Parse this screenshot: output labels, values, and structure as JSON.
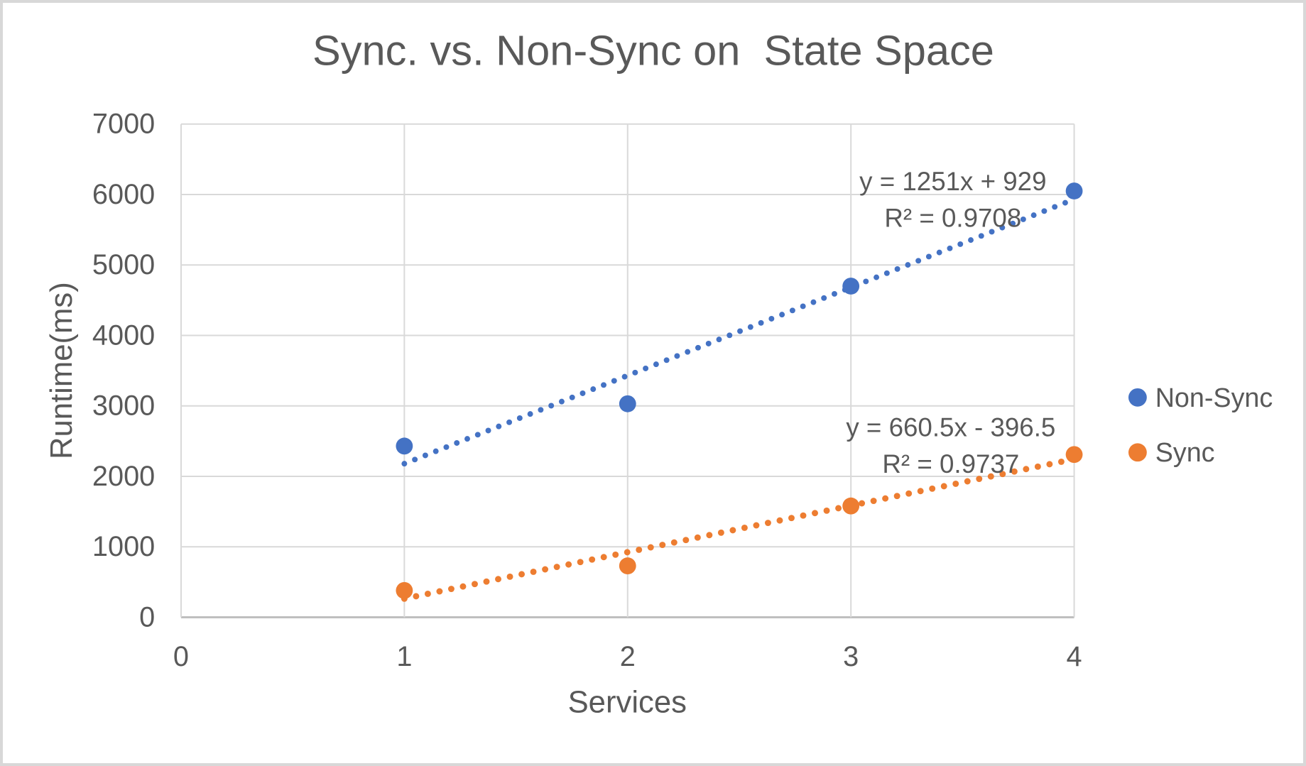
{
  "chart_data": {
    "type": "scatter",
    "title": "Sync. vs. Non-Sync on  State Space",
    "xlabel": "Services",
    "ylabel": "Runtime(ms)",
    "xlim": [
      0,
      4
    ],
    "ylim": [
      0,
      7000
    ],
    "x_ticks": [
      "0",
      "1",
      "2",
      "3",
      "4"
    ],
    "y_ticks": [
      "0",
      "1000",
      "2000",
      "3000",
      "4000",
      "5000",
      "6000",
      "7000"
    ],
    "grid": true,
    "legend_position": "right",
    "x": [
      1,
      2,
      3,
      4
    ],
    "series": [
      {
        "name": "Non-Sync",
        "color": "#4472C4",
        "values": [
          2430,
          3030,
          4700,
          6050
        ],
        "trendline": {
          "style": "dotted",
          "slope": 1251,
          "intercept": 929,
          "x_range": [
            1,
            4
          ],
          "equation": "y = 1251x + 929",
          "r_squared": "R² = 0.9708"
        }
      },
      {
        "name": "Sync",
        "color": "#ED7D31",
        "values": [
          380,
          730,
          1580,
          2310
        ],
        "trendline": {
          "style": "dotted",
          "slope": 660.5,
          "intercept": -396.5,
          "x_range": [
            1,
            4
          ],
          "equation": "y = 660.5x - 396.5",
          "r_squared": "R² = 0.9737"
        }
      }
    ]
  },
  "colors": {
    "text": "#595959",
    "gridline": "#D9D9D9",
    "axis_line": "#BFBFBF",
    "frame_border": "#D8D8D8",
    "background": "#FFFFFF"
  }
}
